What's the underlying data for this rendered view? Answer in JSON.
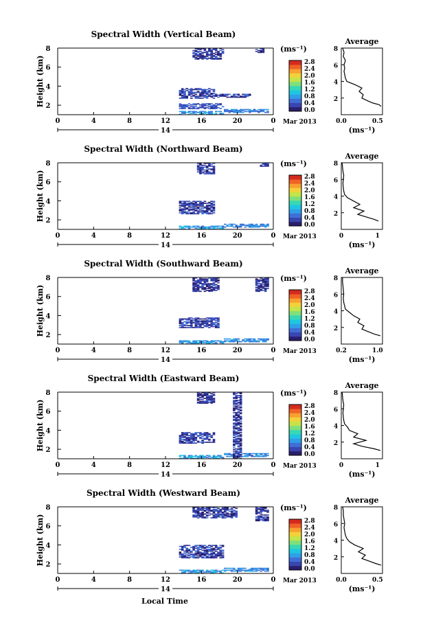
{
  "figure": {
    "month_label": "Mar 2013",
    "day_label": "14",
    "xlabel": "Local Time",
    "x_ticks": [
      "0",
      "4",
      "8",
      "12",
      "16",
      "20",
      "0"
    ],
    "colorbar_unit": "(ms⁻¹)",
    "colorbar_ticks": [
      "0.0",
      "0.4",
      "0.8",
      "1.2",
      "1.6",
      "2.0",
      "2.4",
      "2.8"
    ],
    "avg_title": "Average",
    "avg_xlabel": "(ms⁻¹)",
    "y_ticks": [
      "2",
      "4",
      "6",
      "8"
    ],
    "ylabel": "Height (km)",
    "colormap": [
      "#2a1e6e",
      "#3a46b0",
      "#3f6fd6",
      "#2f9fe8",
      "#1fc6e0",
      "#37d8b4",
      "#7fe07a",
      "#c4e44a",
      "#f2d23a",
      "#f8a030",
      "#f06226",
      "#d42a1e"
    ]
  },
  "chart_data": [
    {
      "type": "heatmap",
      "title": "Spectral Width (Vertical Beam)",
      "xlabel": "Local Time",
      "ylabel": "Height (km)",
      "xlim": [
        0,
        24
      ],
      "ylim": [
        1,
        8
      ],
      "colorbar": {
        "label": "(ms⁻¹)",
        "range": [
          0,
          2.8
        ]
      },
      "regions": [
        {
          "t": [
            13.5,
            18.5
          ],
          "h": [
            1.0,
            1.4
          ],
          "value": 0.8
        },
        {
          "t": [
            18.5,
            23.5
          ],
          "h": [
            1.2,
            1.6
          ],
          "value": 0.7
        },
        {
          "t": [
            13.5,
            18.5
          ],
          "h": [
            1.6,
            2.2
          ],
          "value": 0.45
        },
        {
          "t": [
            13.5,
            17.5
          ],
          "h": [
            2.7,
            3.8
          ],
          "value": 0.35
        },
        {
          "t": [
            17.5,
            21.5
          ],
          "h": [
            2.8,
            3.2
          ],
          "value": 0.3
        },
        {
          "t": [
            15.0,
            18.5
          ],
          "h": [
            6.8,
            7.9
          ],
          "value": 0.3
        },
        {
          "t": [
            22.0,
            23.0
          ],
          "h": [
            7.5,
            7.9
          ],
          "value": 0.3
        }
      ],
      "average": {
        "xlim": [
          0,
          0.6
        ],
        "xticks": [
          "0.0",
          "0.5"
        ],
        "ylim": [
          0,
          8
        ],
        "profile_km": [
          1.0,
          1.2,
          1.4,
          1.6,
          2.0,
          2.4,
          2.8,
          3.2,
          3.6,
          4.0,
          4.4,
          4.8,
          5.2,
          5.6,
          6.0,
          6.5,
          7.0,
          7.5,
          8.0
        ],
        "profile_value": [
          0.58,
          0.55,
          0.46,
          0.4,
          0.3,
          0.32,
          0.26,
          0.3,
          0.2,
          0.08,
          0.06,
          0.05,
          0.04,
          0.05,
          0.04,
          0.06,
          0.03,
          0.04,
          0.02
        ]
      }
    },
    {
      "type": "heatmap",
      "title": "Spectral Width (Northward Beam)",
      "xlabel": "Local Time",
      "ylabel": "Height (km)",
      "xlim": [
        0,
        24
      ],
      "ylim": [
        1,
        8
      ],
      "colorbar": {
        "label": "(ms⁻¹)",
        "range": [
          0,
          2.8
        ]
      },
      "regions": [
        {
          "t": [
            13.5,
            18.5
          ],
          "h": [
            1.0,
            1.4
          ],
          "value": 0.85
        },
        {
          "t": [
            18.5,
            23.5
          ],
          "h": [
            1.2,
            1.6
          ],
          "value": 0.7
        },
        {
          "t": [
            13.5,
            17.5
          ],
          "h": [
            2.6,
            4.0
          ],
          "value": 0.35
        },
        {
          "t": [
            15.5,
            17.5
          ],
          "h": [
            6.8,
            7.9
          ],
          "value": 0.3
        },
        {
          "t": [
            22.5,
            23.5
          ],
          "h": [
            7.6,
            7.9
          ],
          "value": 0.3
        }
      ],
      "average": {
        "xlim": [
          0,
          1
        ],
        "xticks": [
          "0",
          "1"
        ],
        "ylim": [
          0,
          8
        ],
        "profile_km": [
          1.0,
          1.2,
          1.5,
          1.8,
          2.2,
          2.6,
          3.0,
          3.4,
          3.8,
          4.2,
          4.6,
          5.0,
          5.5,
          6.0,
          6.5,
          7.0,
          7.5,
          8.0
        ],
        "profile_value": [
          0.9,
          0.8,
          0.6,
          0.4,
          0.55,
          0.3,
          0.45,
          0.3,
          0.15,
          0.08,
          0.06,
          0.05,
          0.04,
          0.05,
          0.06,
          0.04,
          0.03,
          0.02
        ]
      }
    },
    {
      "type": "heatmap",
      "title": "Spectral Width (Southward Beam)",
      "xlabel": "Local Time",
      "ylabel": "Height (km)",
      "xlim": [
        0,
        24
      ],
      "ylim": [
        1,
        8
      ],
      "colorbar": {
        "label": "(ms⁻¹)",
        "range": [
          0,
          2.8
        ]
      },
      "regions": [
        {
          "t": [
            13.5,
            18.5
          ],
          "h": [
            1.0,
            1.4
          ],
          "value": 0.8
        },
        {
          "t": [
            18.5,
            23.5
          ],
          "h": [
            1.2,
            1.6
          ],
          "value": 0.7
        },
        {
          "t": [
            13.5,
            18.0
          ],
          "h": [
            2.7,
            3.8
          ],
          "value": 0.35
        },
        {
          "t": [
            15.0,
            18.0
          ],
          "h": [
            6.5,
            7.9
          ],
          "value": 0.3
        },
        {
          "t": [
            22.0,
            23.5
          ],
          "h": [
            6.5,
            7.9
          ],
          "value": 0.3
        }
      ],
      "average": {
        "xlim": [
          0,
          1
        ],
        "xticks": [
          "0.2",
          "1.0"
        ],
        "ylim": [
          0,
          8
        ],
        "profile_km": [
          1.0,
          1.2,
          1.5,
          1.8,
          2.2,
          2.6,
          3.0,
          3.4,
          3.8,
          4.2,
          4.6,
          5.0,
          5.5,
          6.0,
          6.5,
          7.0,
          7.5,
          8.0
        ],
        "profile_value": [
          0.95,
          0.8,
          0.65,
          0.5,
          0.55,
          0.4,
          0.45,
          0.3,
          0.2,
          0.1,
          0.08,
          0.06,
          0.05,
          0.06,
          0.05,
          0.04,
          0.03,
          0.03
        ]
      }
    },
    {
      "type": "heatmap",
      "title": "Spectral Width (Eastward Beam)",
      "xlabel": "Local Time",
      "ylabel": "Height (km)",
      "xlim": [
        0,
        24
      ],
      "ylim": [
        1,
        8
      ],
      "colorbar": {
        "label": "(ms⁻¹)",
        "range": [
          0,
          2.8
        ]
      },
      "regions": [
        {
          "t": [
            13.5,
            18.5
          ],
          "h": [
            1.0,
            1.4
          ],
          "value": 0.8
        },
        {
          "t": [
            18.5,
            23.5
          ],
          "h": [
            1.2,
            1.6
          ],
          "value": 0.7
        },
        {
          "t": [
            13.5,
            17.5
          ],
          "h": [
            2.6,
            3.8
          ],
          "value": 0.35
        },
        {
          "t": [
            19.5,
            20.5
          ],
          "h": [
            1.0,
            7.9
          ],
          "value": 0.3
        },
        {
          "t": [
            15.5,
            17.5
          ],
          "h": [
            6.8,
            7.9
          ],
          "value": 0.3
        }
      ],
      "average": {
        "xlim": [
          0,
          1
        ],
        "xticks": [
          "0",
          "1"
        ],
        "ylim": [
          0,
          8
        ],
        "profile_km": [
          1.0,
          1.2,
          1.5,
          1.8,
          2.2,
          2.6,
          3.0,
          3.4,
          3.8,
          4.2,
          4.6,
          5.0,
          5.5,
          6.0,
          6.5,
          7.0,
          7.5,
          8.0
        ],
        "profile_value": [
          0.95,
          0.8,
          0.5,
          0.3,
          0.6,
          0.3,
          0.4,
          0.2,
          0.15,
          0.08,
          0.06,
          0.05,
          0.04,
          0.05,
          0.06,
          0.04,
          0.03,
          0.02
        ]
      }
    },
    {
      "type": "heatmap",
      "title": "Spectral Width (Westward Beam)",
      "xlabel": "Local Time",
      "ylabel": "Height (km)",
      "xlim": [
        0,
        24
      ],
      "ylim": [
        1,
        8
      ],
      "colorbar": {
        "label": "(ms⁻¹)",
        "range": [
          0,
          2.8
        ]
      },
      "regions": [
        {
          "t": [
            13.5,
            18.5
          ],
          "h": [
            1.0,
            1.4
          ],
          "value": 0.8
        },
        {
          "t": [
            18.5,
            23.5
          ],
          "h": [
            1.2,
            1.6
          ],
          "value": 0.7
        },
        {
          "t": [
            13.5,
            18.5
          ],
          "h": [
            2.6,
            4.0
          ],
          "value": 0.35
        },
        {
          "t": [
            15.0,
            20.0
          ],
          "h": [
            6.8,
            7.9
          ],
          "value": 0.3
        },
        {
          "t": [
            22.0,
            23.5
          ],
          "h": [
            6.5,
            7.9
          ],
          "value": 0.3
        }
      ],
      "average": {
        "xlim": [
          0,
          0.6
        ],
        "xticks": [
          "0.0",
          "0.5"
        ],
        "ylim": [
          0,
          8
        ],
        "profile_km": [
          1.0,
          1.2,
          1.5,
          1.8,
          2.2,
          2.6,
          3.0,
          3.4,
          3.8,
          4.2,
          4.6,
          5.0,
          5.5,
          6.0,
          6.5,
          7.0,
          7.5,
          8.0
        ],
        "profile_value": [
          0.58,
          0.5,
          0.4,
          0.3,
          0.35,
          0.25,
          0.32,
          0.2,
          0.12,
          0.08,
          0.06,
          0.05,
          0.04,
          0.05,
          0.04,
          0.03,
          0.03,
          0.02
        ]
      }
    }
  ]
}
